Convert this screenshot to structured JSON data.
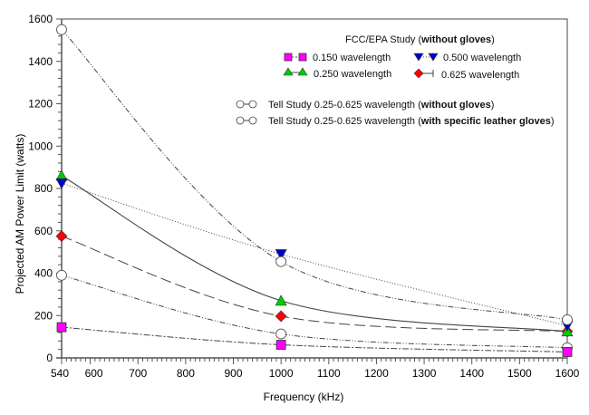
{
  "chart_data": {
    "type": "line",
    "title": "",
    "xlabel": "Frequency (kHz)",
    "ylabel": "Projected AM Power Limit (watts)",
    "xlim": [
      540,
      1600
    ],
    "ylim": [
      0,
      1600
    ],
    "x_ticks": [
      540,
      600,
      700,
      800,
      900,
      1000,
      1100,
      1200,
      1300,
      1400,
      1500,
      1600
    ],
    "y_ticks": [
      0,
      200,
      400,
      600,
      800,
      1000,
      1200,
      1400,
      1600
    ],
    "grid": false,
    "legend_position": "top-right",
    "legend": {
      "group1_title_prefix": "FCC/EPA Study (",
      "group1_title_bold": "without gloves",
      "group1_title_suffix": ")",
      "tell_prefix": "Tell Study 0.25-0.625  wavelength (",
      "tell_prefix_2": "Tell Study 0.25-0.625 wavelength (",
      "tell1_bold": "without gloves",
      "tell2_bold": "with specific leather gloves",
      "close_paren": ")"
    },
    "series": [
      {
        "id": "s150",
        "name": "0.150 wavelength",
        "group": "FCC/EPA",
        "x": [
          540,
          1000,
          1600
        ],
        "values": [
          145,
          62,
          28
        ],
        "color": "#ff00ff",
        "marker": "square",
        "dash": "7,2,2,2"
      },
      {
        "id": "s250",
        "name": "0.250 wavelength",
        "group": "FCC/EPA",
        "x": [
          540,
          1000,
          1600
        ],
        "values": [
          860,
          270,
          125
        ],
        "color": "#00cc00",
        "marker": "triangle-up",
        "dash": ""
      },
      {
        "id": "s500",
        "name": "0.500 wavelength",
        "group": "FCC/EPA",
        "x": [
          540,
          1000,
          1600
        ],
        "values": [
          825,
          490,
          152
        ],
        "color": "#0000cc",
        "marker": "triangle-down",
        "dash": "1,2"
      },
      {
        "id": "s625",
        "name": "0.625 wavelength",
        "group": "FCC/EPA",
        "x": [
          540,
          1000,
          1600
        ],
        "values": [
          575,
          197,
          125
        ],
        "color": "#ff0000",
        "marker": "diamond",
        "dash": "12,5"
      },
      {
        "id": "tell1",
        "name": "Tell Study 0.25-0.625  wavelength (without gloves)",
        "group": "Tell",
        "x": [
          540,
          1000,
          1600
        ],
        "values": [
          390,
          113,
          48
        ],
        "color": "#ffffff",
        "marker": "circle",
        "dash": "6,2,1,2,1,2"
      },
      {
        "id": "tell2",
        "name": "Tell Study 0.25-0.625 wavelength (with specific leather gloves)",
        "group": "Tell",
        "x": [
          540,
          1000,
          1600
        ],
        "values": [
          1550,
          455,
          180
        ],
        "color": "#ffffff",
        "marker": "circle",
        "dash": "6,2,1,2,1,2"
      }
    ]
  }
}
